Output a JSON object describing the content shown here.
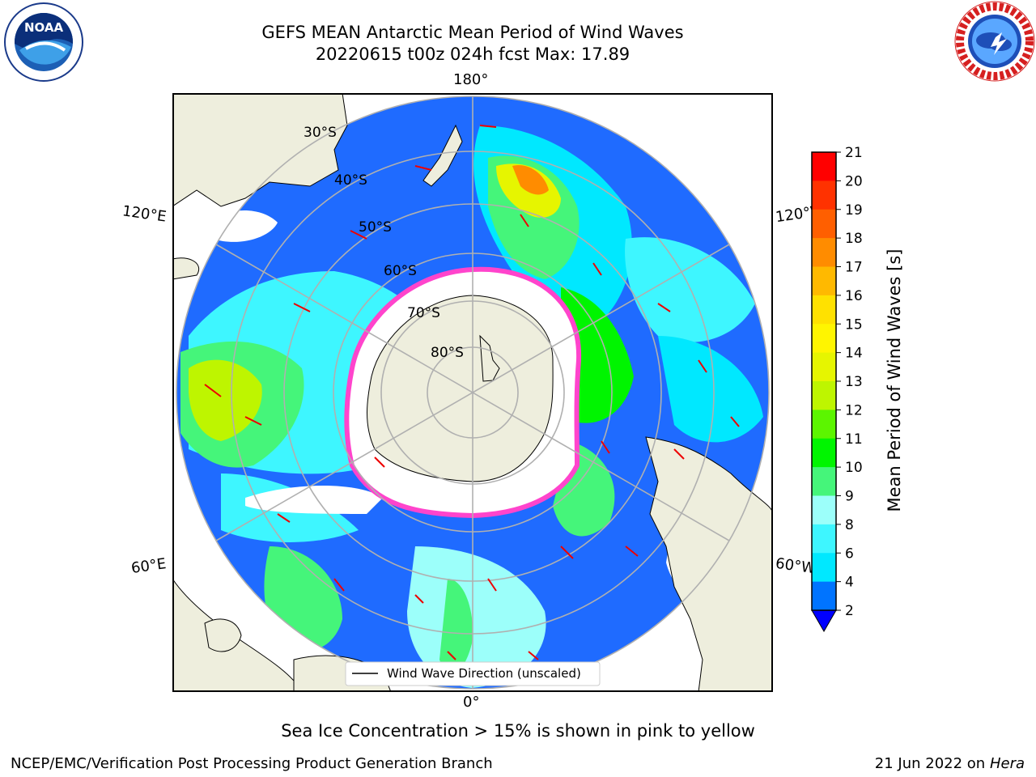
{
  "header": {
    "title": "GEFS MEAN Antarctic Mean Period of Wind Waves",
    "subtitle": "20220615 t00z 024h fcst   Max: 17.89"
  },
  "logos": {
    "left": {
      "icon": "noaa-logo",
      "text": "NOAA",
      "ring_text": "NATIONAL OCEANIC AND ATMOSPHERIC ADMINISTRATION · U.S. DEPARTMENT OF COMMERCE"
    },
    "right": {
      "icon": "nws-logo",
      "ring_text": "NATIONAL WEATHER SERVICE"
    }
  },
  "map": {
    "projection": "south-polar-stereographic",
    "longitude_labels": {
      "top": "180°",
      "bottom": "0°",
      "left_upper": "120°E",
      "left_lower": "60°E",
      "right_upper": "120°W",
      "right_lower": "60°W"
    },
    "latitude_labels": [
      "30°S",
      "40°S",
      "50°S",
      "60°S",
      "70°S",
      "80°S"
    ],
    "legend_label": "Wind Wave Direction (unscaled)",
    "colors": {
      "land": "#eeeedd",
      "ocean_nodata": "#ffffff",
      "ice_edge": "#ff44cc",
      "grid": "#b0b0b0",
      "arrow": "#ee0000"
    }
  },
  "colorbar": {
    "label": "Mean Period of Wind Waves [s]",
    "ticks": [
      "2",
      "4",
      "6",
      "8",
      "9",
      "10",
      "11",
      "12",
      "13",
      "14",
      "15",
      "16",
      "17",
      "18",
      "19",
      "20",
      "21"
    ],
    "bands": [
      {
        "from": 2,
        "to": 4,
        "color": "#0074ff"
      },
      {
        "from": 4,
        "to": 6,
        "color": "#00e8ff"
      },
      {
        "from": 6,
        "to": 8,
        "color": "#3ef6ff"
      },
      {
        "from": 8,
        "to": 9,
        "color": "#9cfffa"
      },
      {
        "from": 9,
        "to": 10,
        "color": "#45f57a"
      },
      {
        "from": 10,
        "to": 11,
        "color": "#00f500"
      },
      {
        "from": 11,
        "to": 12,
        "color": "#5cf500"
      },
      {
        "from": 12,
        "to": 13,
        "color": "#bef500"
      },
      {
        "from": 13,
        "to": 14,
        "color": "#e6f500"
      },
      {
        "from": 14,
        "to": 15,
        "color": "#fff500"
      },
      {
        "from": 15,
        "to": 16,
        "color": "#ffe100"
      },
      {
        "from": 16,
        "to": 17,
        "color": "#ffb900"
      },
      {
        "from": 17,
        "to": 18,
        "color": "#ff8c00"
      },
      {
        "from": 18,
        "to": 19,
        "color": "#ff5f00"
      },
      {
        "from": 19,
        "to": 20,
        "color": "#ff3200"
      },
      {
        "from": 20,
        "to": 21,
        "color": "#ff0000"
      }
    ],
    "extend_color": "#0000ff"
  },
  "note": "Sea Ice Concentration > 15% is shown in pink to yellow",
  "footer": {
    "left": "NCEP/EMC/Verification Post Processing Product Generation Branch",
    "right_date": "21 Jun 2022 on",
    "right_host": "Hera"
  }
}
